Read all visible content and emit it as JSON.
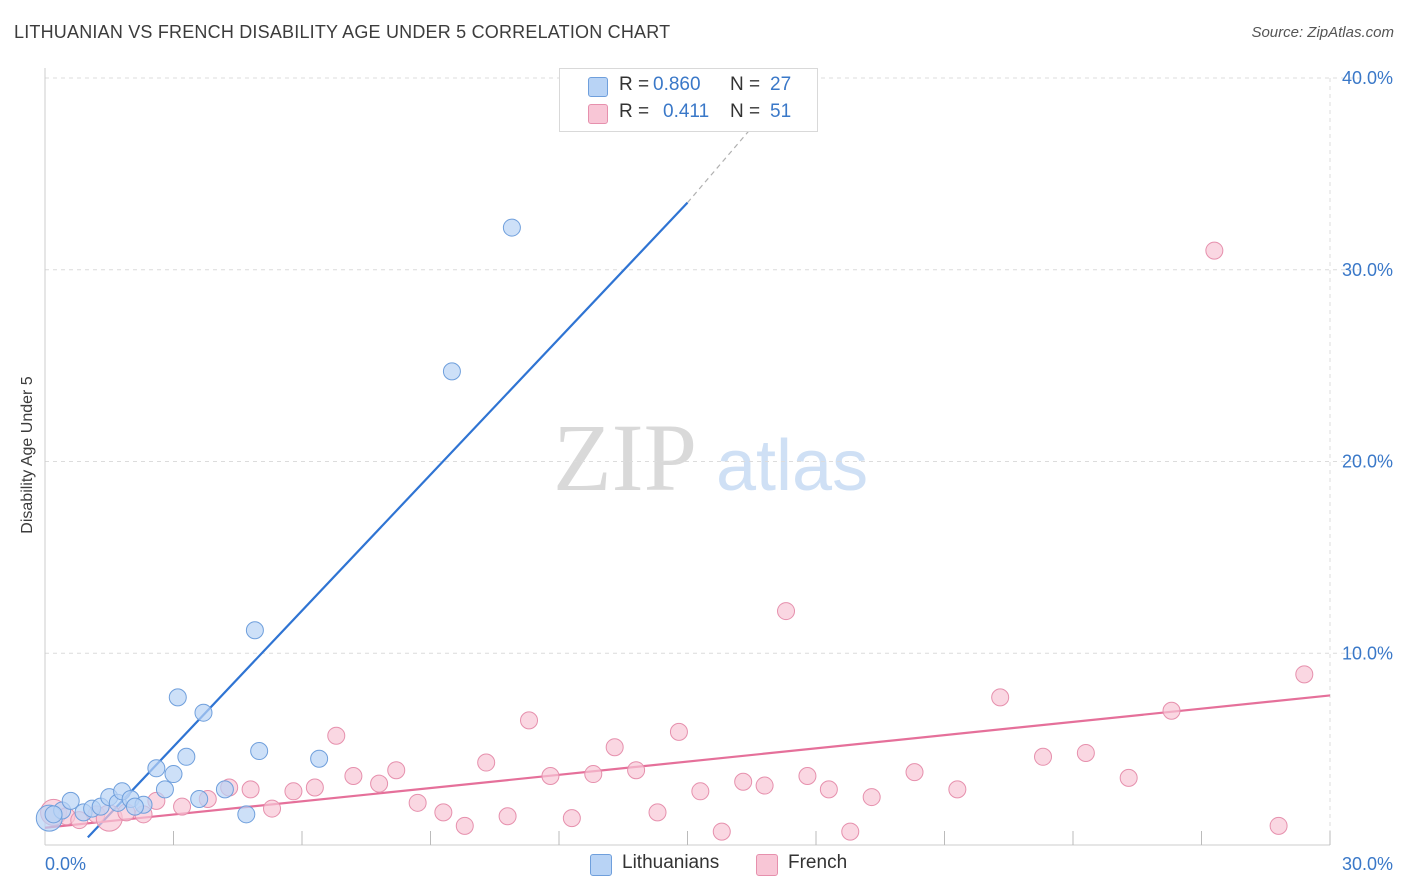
{
  "header": {
    "title": "LITHUANIAN VS FRENCH DISABILITY AGE UNDER 5 CORRELATION CHART",
    "source": "Source: ZipAtlas.com"
  },
  "watermark": {
    "zip": "ZIP",
    "atlas": "atlas"
  },
  "legend_top": {
    "rows": [
      {
        "r_label": "R =",
        "r_value": "0.860",
        "n_label": "N =",
        "n_value": "27"
      },
      {
        "r_label": "R =",
        "r_value": "0.411",
        "n_label": "N =",
        "n_value": "51"
      }
    ]
  },
  "legend_bottom": {
    "items": [
      {
        "label": "Lithuanians"
      },
      {
        "label": "French"
      }
    ]
  },
  "colors": {
    "blue_fill": "#b8d3f5",
    "blue_stroke": "#6f9fdc",
    "blue_line": "#2f74d3",
    "pink_fill": "#f8c6d6",
    "pink_stroke": "#e690ad",
    "pink_line": "#e5709a",
    "tick_label": "#3a78c8",
    "grid": "#dcdcdc"
  },
  "chart_data": {
    "type": "scatter",
    "title": "LITHUANIAN VS FRENCH DISABILITY AGE UNDER 5 CORRELATION CHART",
    "xlabel": "",
    "ylabel": "Disability Age Under 5",
    "xlim": [
      0,
      30
    ],
    "ylim": [
      0,
      40
    ],
    "x_tick_labels": [
      "0.0%",
      "30.0%"
    ],
    "y_ticks": [
      10,
      20,
      30,
      40
    ],
    "y_tick_labels": [
      "10.0%",
      "20.0%",
      "30.0%",
      "40.0%"
    ],
    "grid": true,
    "legend_position": "top-center",
    "series": [
      {
        "name": "Lithuanians",
        "R": 0.86,
        "N": 27,
        "trend": {
          "x0": 1.0,
          "y0": 0.4,
          "x1": 15.0,
          "y1": 33.5,
          "dash_to_x": 16.8,
          "dash_to_y": 38.2
        },
        "points": [
          {
            "x": 0.1,
            "y": 1.4,
            "big": true
          },
          {
            "x": 0.4,
            "y": 1.8
          },
          {
            "x": 0.6,
            "y": 2.3
          },
          {
            "x": 0.9,
            "y": 1.7
          },
          {
            "x": 1.1,
            "y": 1.9
          },
          {
            "x": 1.3,
            "y": 2.0
          },
          {
            "x": 1.5,
            "y": 2.5
          },
          {
            "x": 1.7,
            "y": 2.2
          },
          {
            "x": 1.8,
            "y": 2.8
          },
          {
            "x": 2.0,
            "y": 2.4
          },
          {
            "x": 2.3,
            "y": 2.1
          },
          {
            "x": 2.6,
            "y": 4.0
          },
          {
            "x": 2.8,
            "y": 2.9
          },
          {
            "x": 3.0,
            "y": 3.7
          },
          {
            "x": 3.1,
            "y": 7.7
          },
          {
            "x": 3.3,
            "y": 4.6
          },
          {
            "x": 3.6,
            "y": 2.4
          },
          {
            "x": 3.7,
            "y": 6.9
          },
          {
            "x": 4.2,
            "y": 2.9
          },
          {
            "x": 4.7,
            "y": 1.6
          },
          {
            "x": 4.9,
            "y": 11.2
          },
          {
            "x": 5.0,
            "y": 4.9
          },
          {
            "x": 6.4,
            "y": 4.5
          },
          {
            "x": 9.5,
            "y": 24.7
          },
          {
            "x": 10.9,
            "y": 32.2
          },
          {
            "x": 0.2,
            "y": 1.6
          },
          {
            "x": 2.1,
            "y": 2.0
          }
        ]
      },
      {
        "name": "French",
        "R": 0.411,
        "N": 51,
        "trend": {
          "x0": 0.0,
          "y0": 0.9,
          "x1": 30.0,
          "y1": 7.8
        },
        "points": [
          {
            "x": 0.2,
            "y": 1.7,
            "big": true
          },
          {
            "x": 0.5,
            "y": 1.5
          },
          {
            "x": 0.8,
            "y": 1.3
          },
          {
            "x": 1.2,
            "y": 1.6
          },
          {
            "x": 1.5,
            "y": 1.4,
            "big": true
          },
          {
            "x": 1.9,
            "y": 1.7
          },
          {
            "x": 2.3,
            "y": 1.6
          },
          {
            "x": 2.6,
            "y": 2.3
          },
          {
            "x": 3.2,
            "y": 2.0
          },
          {
            "x": 3.8,
            "y": 2.4
          },
          {
            "x": 4.3,
            "y": 3.0
          },
          {
            "x": 4.8,
            "y": 2.9
          },
          {
            "x": 5.3,
            "y": 1.9
          },
          {
            "x": 5.8,
            "y": 2.8
          },
          {
            "x": 6.3,
            "y": 3.0
          },
          {
            "x": 6.8,
            "y": 5.7
          },
          {
            "x": 7.2,
            "y": 3.6
          },
          {
            "x": 7.8,
            "y": 3.2
          },
          {
            "x": 8.2,
            "y": 3.9
          },
          {
            "x": 8.7,
            "y": 2.2
          },
          {
            "x": 9.3,
            "y": 1.7
          },
          {
            "x": 9.8,
            "y": 1.0
          },
          {
            "x": 10.3,
            "y": 4.3
          },
          {
            "x": 10.8,
            "y": 1.5
          },
          {
            "x": 11.3,
            "y": 6.5
          },
          {
            "x": 11.8,
            "y": 3.6
          },
          {
            "x": 12.3,
            "y": 1.4
          },
          {
            "x": 12.8,
            "y": 3.7
          },
          {
            "x": 13.3,
            "y": 5.1
          },
          {
            "x": 13.8,
            "y": 3.9
          },
          {
            "x": 14.3,
            "y": 1.7
          },
          {
            "x": 14.8,
            "y": 5.9
          },
          {
            "x": 15.3,
            "y": 2.8
          },
          {
            "x": 15.8,
            "y": 0.7
          },
          {
            "x": 16.3,
            "y": 3.3
          },
          {
            "x": 16.8,
            "y": 3.1
          },
          {
            "x": 17.3,
            "y": 12.2
          },
          {
            "x": 17.8,
            "y": 3.6
          },
          {
            "x": 18.3,
            "y": 2.9
          },
          {
            "x": 18.8,
            "y": 0.7
          },
          {
            "x": 19.3,
            "y": 2.5
          },
          {
            "x": 20.3,
            "y": 3.8
          },
          {
            "x": 21.3,
            "y": 2.9
          },
          {
            "x": 22.3,
            "y": 7.7
          },
          {
            "x": 23.3,
            "y": 4.6
          },
          {
            "x": 24.3,
            "y": 4.8
          },
          {
            "x": 25.3,
            "y": 3.5
          },
          {
            "x": 26.3,
            "y": 7.0
          },
          {
            "x": 27.3,
            "y": 31.0
          },
          {
            "x": 28.8,
            "y": 1.0
          },
          {
            "x": 29.4,
            "y": 8.9
          }
        ]
      }
    ]
  }
}
